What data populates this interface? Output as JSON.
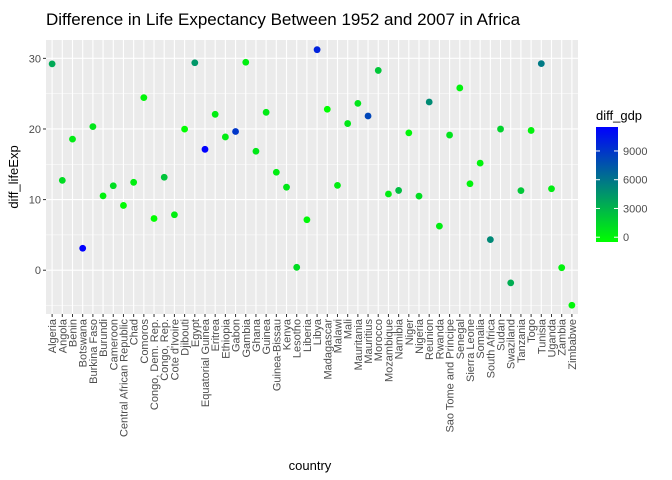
{
  "chart_data": {
    "type": "scatter",
    "title": "Difference in Life Expectancy Between 1952 and 2007 in Africa",
    "xlabel": "country",
    "ylabel": "diff_lifeExp",
    "ylim": [
      -6.2,
      32.6
    ],
    "yticks": [
      0,
      10,
      20,
      30
    ],
    "grid": true,
    "legend": {
      "title": "diff_gdp",
      "position": "right",
      "ticks": [
        0,
        3000,
        6000,
        9000
      ],
      "range": [
        -500,
        11500
      ],
      "low_color": "#00FF00",
      "high_color": "#0000FF"
    },
    "points": [
      {
        "country": "Algeria",
        "y": 29.22,
        "gdp": 3535
      },
      {
        "country": "Angola",
        "y": 12.72,
        "gdp": 1082
      },
      {
        "country": "Benin",
        "y": 18.56,
        "gdp": 385
      },
      {
        "country": "Botswana",
        "y": 3.11,
        "gdp": 11918
      },
      {
        "country": "Burkina Faso",
        "y": 20.33,
        "gdp": 676
      },
      {
        "country": "Burundi",
        "y": 10.53,
        "gdp": 91
      },
      {
        "country": "Cameroon",
        "y": 11.96,
        "gdp": 1036
      },
      {
        "country": "Central African Republic",
        "y": 9.17,
        "gdp": -365
      },
      {
        "country": "Chad",
        "y": 12.45,
        "gdp": 276
      },
      {
        "country": "Comoros",
        "y": 24.44,
        "gdp": -91
      },
      {
        "country": "Congo, Dem. Rep.",
        "y": 7.32,
        "gdp": -504
      },
      {
        "country": "Congo, Rep.",
        "y": 13.16,
        "gdp": 2220
      },
      {
        "country": "Cote d'Ivoire",
        "y": 7.85,
        "gdp": 237
      },
      {
        "country": "Djibouti",
        "y": 19.98,
        "gdp": -1014
      },
      {
        "country": "Egypt",
        "y": 29.38,
        "gdp": 4393
      },
      {
        "country": "Equatorial Guinea",
        "y": 17.12,
        "gdp": 11816
      },
      {
        "country": "Eritrea",
        "y": 22.08,
        "gdp": 312
      },
      {
        "country": "Ethiopia",
        "y": 18.87,
        "gdp": 328
      },
      {
        "country": "Gabon",
        "y": 19.64,
        "gdp": 8974
      },
      {
        "country": "Gambia",
        "y": 29.45,
        "gdp": 267
      },
      {
        "country": "Ghana",
        "y": 16.85,
        "gdp": 584
      },
      {
        "country": "Guinea",
        "y": 22.36,
        "gdp": 432
      },
      {
        "country": "Guinea-Bissau",
        "y": 13.87,
        "gdp": 280
      },
      {
        "country": "Kenya",
        "y": 11.76,
        "gdp": 610
      },
      {
        "country": "Lesotho",
        "y": 0.41,
        "gdp": 1103
      },
      {
        "country": "Liberia",
        "y": 7.15,
        "gdp": -161
      },
      {
        "country": "Libya",
        "y": 31.23,
        "gdp": 9910
      },
      {
        "country": "Madagascar",
        "y": 22.79,
        "gdp": -581
      },
      {
        "country": "Malawi",
        "y": 12.01,
        "gdp": 293
      },
      {
        "country": "Mali",
        "y": 20.77,
        "gdp": 590
      },
      {
        "country": "Mauritania",
        "y": 23.63,
        "gdp": 700
      },
      {
        "country": "Mauritius",
        "y": 21.84,
        "gdp": 8211
      },
      {
        "country": "Morocco",
        "y": 28.29,
        "gdp": 2141
      },
      {
        "country": "Mozambique",
        "y": 10.79,
        "gdp": 355
      },
      {
        "country": "Namibia",
        "y": 11.3,
        "gdp": 2546
      },
      {
        "country": "Niger",
        "y": 19.45,
        "gdp": -142
      },
      {
        "country": "Nigeria",
        "y": 10.49,
        "gdp": 1097
      },
      {
        "country": "Reunion",
        "y": 23.82,
        "gdp": 4945
      },
      {
        "country": "Rwanda",
        "y": 6.24,
        "gdp": 370
      },
      {
        "country": "Sao Tome and Principe",
        "y": 19.14,
        "gdp": 819
      },
      {
        "country": "Senegal",
        "y": 25.81,
        "gdp": 88
      },
      {
        "country": "Sierra Leone",
        "y": 12.24,
        "gdp": 17
      },
      {
        "country": "Somalia",
        "y": 15.17,
        "gdp": 9
      },
      {
        "country": "South Africa",
        "y": 4.33,
        "gdp": 5039
      },
      {
        "country": "Sudan",
        "y": 19.99,
        "gdp": 1584
      },
      {
        "country": "Swaziland",
        "y": -1.79,
        "gdp": 3345
      },
      {
        "country": "Tanzania",
        "y": 11.27,
        "gdp": 2109
      },
      {
        "country": "Togo",
        "y": 19.79,
        "gdp": 83
      },
      {
        "country": "Tunisia",
        "y": 29.25,
        "gdp": 5746
      },
      {
        "country": "Uganda",
        "y": 11.54,
        "gdp": 330
      },
      {
        "country": "Zambia",
        "y": 0.36,
        "gdp": 81
      },
      {
        "country": "Zimbabwe",
        "y": -4.96,
        "gdp": -63
      }
    ]
  }
}
